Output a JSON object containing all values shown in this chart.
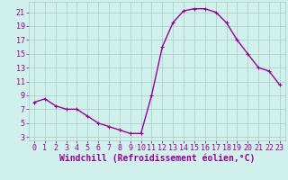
{
  "hours": [
    0,
    1,
    2,
    3,
    4,
    5,
    6,
    7,
    8,
    9,
    10,
    11,
    12,
    13,
    14,
    15,
    16,
    17,
    18,
    19,
    20,
    21,
    22,
    23
  ],
  "values": [
    8.0,
    8.5,
    7.5,
    7.0,
    7.0,
    6.0,
    5.0,
    4.5,
    4.0,
    3.5,
    3.5,
    9.0,
    16.0,
    19.5,
    21.2,
    21.5,
    21.5,
    21.0,
    19.5,
    17.0,
    15.0,
    13.0,
    12.5,
    10.5
  ],
  "line_color": "#990099",
  "marker": "+",
  "marker_size": 3,
  "marker_linewidth": 0.8,
  "bg_color": "#cff0eb",
  "grid_color": "#b0c8c4",
  "xlabel": "Windchill (Refroidissement éolien,°C)",
  "xlabel_color": "#990099",
  "xlabel_fontsize": 7,
  "yticks": [
    3,
    5,
    7,
    9,
    11,
    13,
    15,
    17,
    19,
    21
  ],
  "xticks": [
    0,
    1,
    2,
    3,
    4,
    5,
    6,
    7,
    8,
    9,
    10,
    11,
    12,
    13,
    14,
    15,
    16,
    17,
    18,
    19,
    20,
    21,
    22,
    23
  ],
  "ylim": [
    2.5,
    22.5
  ],
  "xlim": [
    -0.5,
    23.5
  ],
  "tick_fontsize": 6,
  "tick_color": "#990099",
  "line_width": 1.0
}
